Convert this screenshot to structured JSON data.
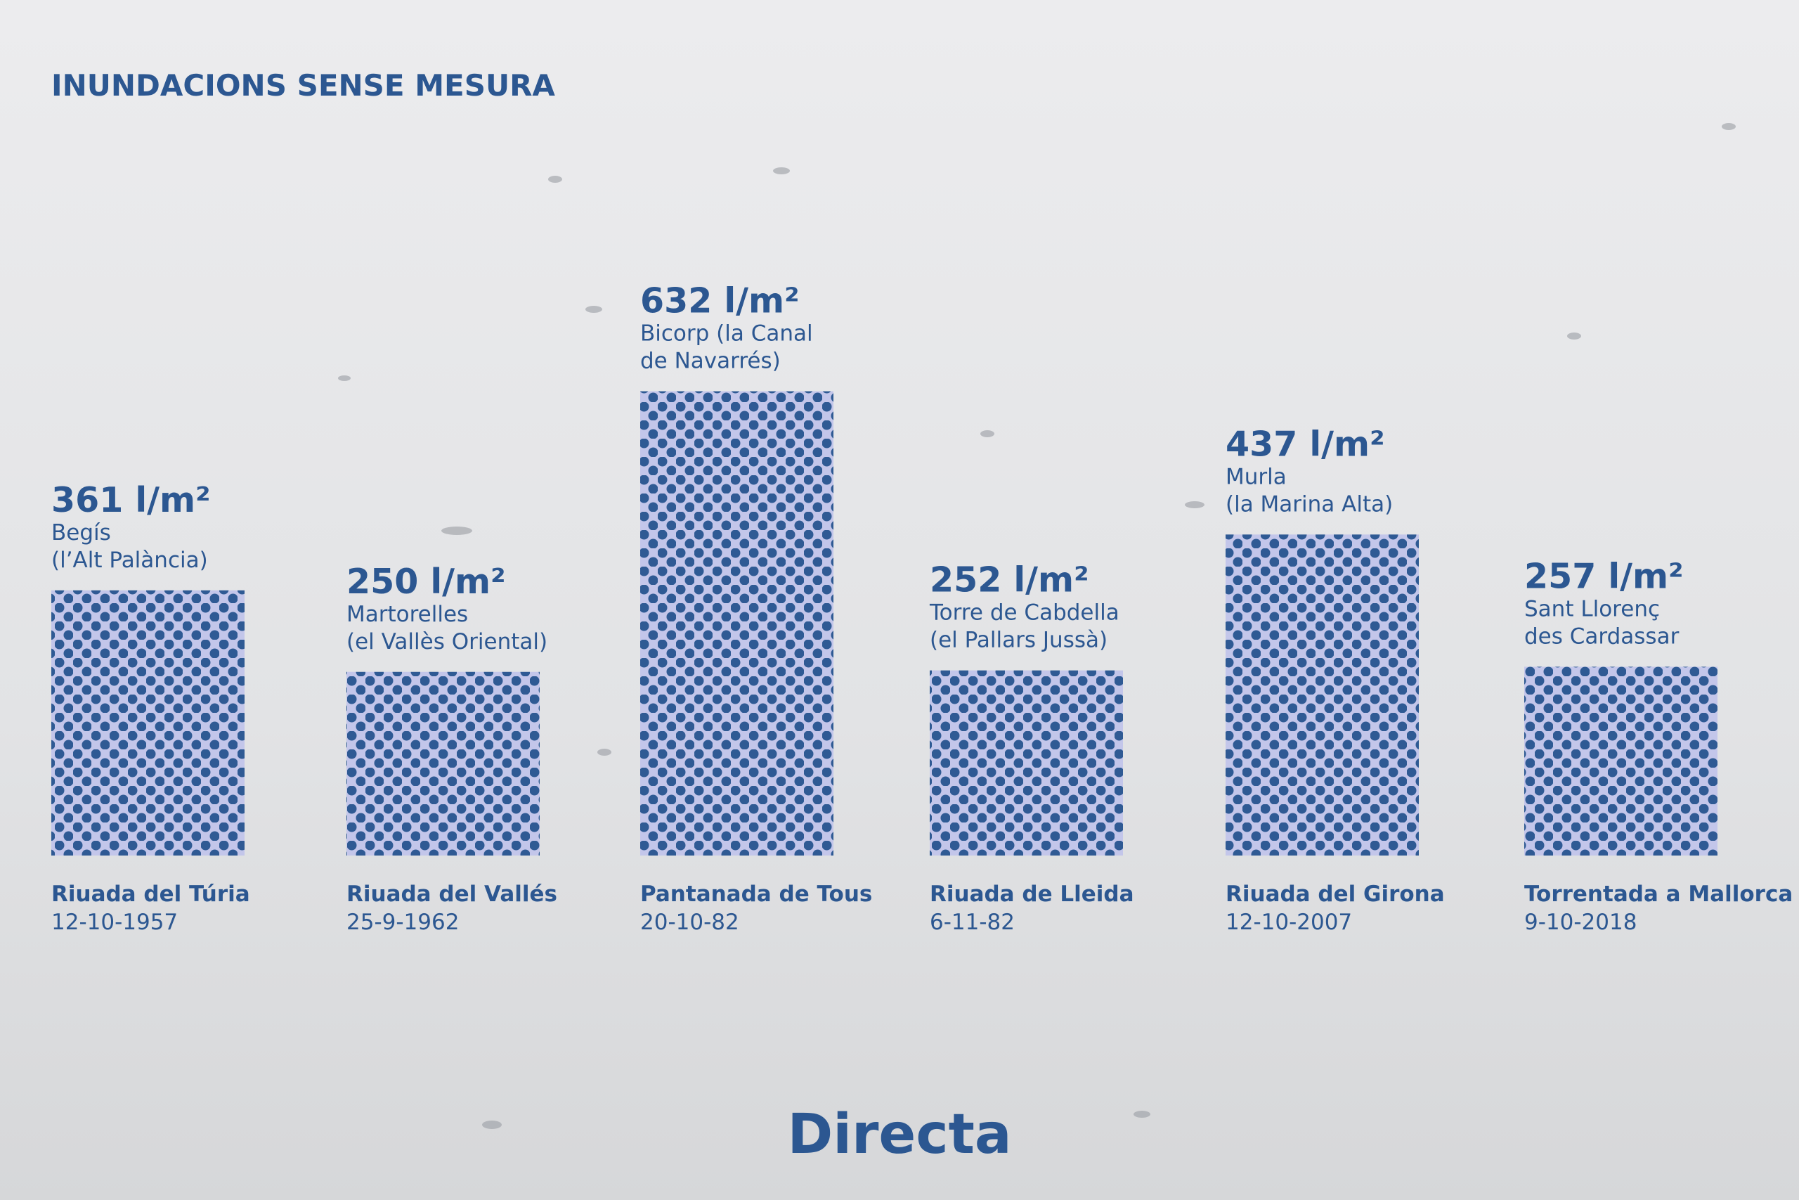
{
  "chart_data": {
    "type": "bar",
    "title": "INUNDACIONS SENSE MESURA",
    "categories": [
      "Riuada del Túria",
      "Riuada del Vallés",
      "Pantanada de Tous",
      "Riuada de Lleida",
      "Riuada del Girona",
      "Torrentada a Mallorca"
    ],
    "dates": [
      "12-10-1957",
      "25-9-1962",
      "20-10-82",
      "6-11-82",
      "12-10-2007",
      "9-10-2018"
    ],
    "locations": [
      [
        "Begís",
        "(l’Alt Palància)"
      ],
      [
        "Martorelles",
        "(el Vallès Oriental)"
      ],
      [
        "Bicorp (la Canal",
        "de Navarrés)"
      ],
      [
        "Torre de Cabdella",
        "(el Pallars Jussà)"
      ],
      [
        "Murla",
        "(la Marina Alta)"
      ],
      [
        "Sant Llorenç",
        "des Cardassar"
      ]
    ],
    "values": [
      361,
      250,
      632,
      252,
      437,
      257
    ],
    "value_labels": [
      "361 l/m²",
      "250 l/m²",
      "632 l/m²",
      "252 l/m²",
      "437 l/m²",
      "257 l/m²"
    ],
    "color": "#2f5a94",
    "logo": "Directa"
  }
}
